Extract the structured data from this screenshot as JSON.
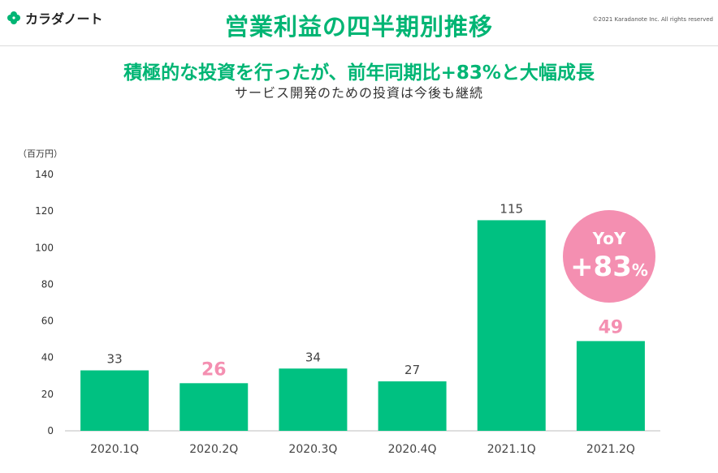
{
  "header": {
    "logo_text": "カラダノート",
    "title": "営業利益の四半期別推移",
    "copyright": "©2021 Karadanote Inc. All rights reserved"
  },
  "headline": "積極的な投資を行ったが、前年同期比+83%と大幅成長",
  "subheadline": "サービス開発のための投資は今後も継続",
  "unit_label": "（百万円）",
  "colors": {
    "brand_green": "#00b574",
    "highlight_pink": "#f48fb1",
    "bar_green": "#00c181"
  },
  "badge": {
    "line1": "YoY",
    "line2": "+83",
    "suffix": "%"
  },
  "chart_data": {
    "type": "bar",
    "title": "営業利益の四半期別推移",
    "ylabel": "（百万円）",
    "categories": [
      "2020.1Q",
      "2020.2Q",
      "2020.3Q",
      "2020.4Q",
      "2021.1Q",
      "2021.2Q"
    ],
    "values": [
      33,
      26,
      34,
      27,
      115,
      49
    ],
    "value_labels": [
      "33",
      "26",
      "34",
      "27",
      "115",
      "49"
    ],
    "highlighted_labels": [
      1,
      5
    ],
    "ylim": [
      0,
      140
    ],
    "yticks": [
      0,
      20,
      40,
      60,
      80,
      100,
      120,
      140
    ],
    "grid": false
  }
}
